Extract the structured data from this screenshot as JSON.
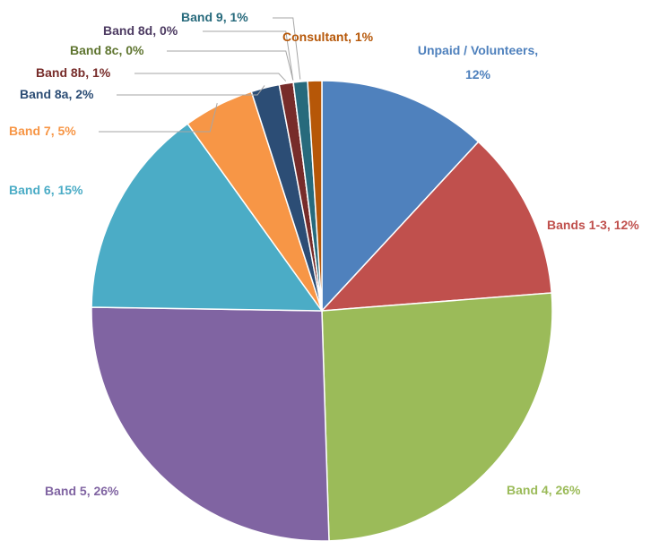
{
  "chart_data": {
    "type": "pie",
    "categories": [
      "Unpaid / Volunteers",
      "Bands 1-3",
      "Band 4",
      "Band 5",
      "Band 6",
      "Band 7",
      "Band 8a",
      "Band 8b",
      "Band 8c",
      "Band 8d",
      "Band 9",
      "Consultant"
    ],
    "values": [
      12,
      12,
      26,
      26,
      15,
      5,
      2,
      1,
      0,
      0,
      1,
      1
    ],
    "value_labels": [
      "12%",
      "12%",
      "26%",
      "26%",
      "15%",
      "5%",
      "2%",
      "1%",
      "0%",
      "0%",
      "1%",
      "1%"
    ],
    "colors": [
      "#4f81bd",
      "#c0504d",
      "#9bbb59",
      "#8064a2",
      "#4bacc6",
      "#f79646",
      "#2c4d75",
      "#772c2a",
      "#5f7530",
      "#4d3b62",
      "#276a7c",
      "#b65708"
    ]
  }
}
